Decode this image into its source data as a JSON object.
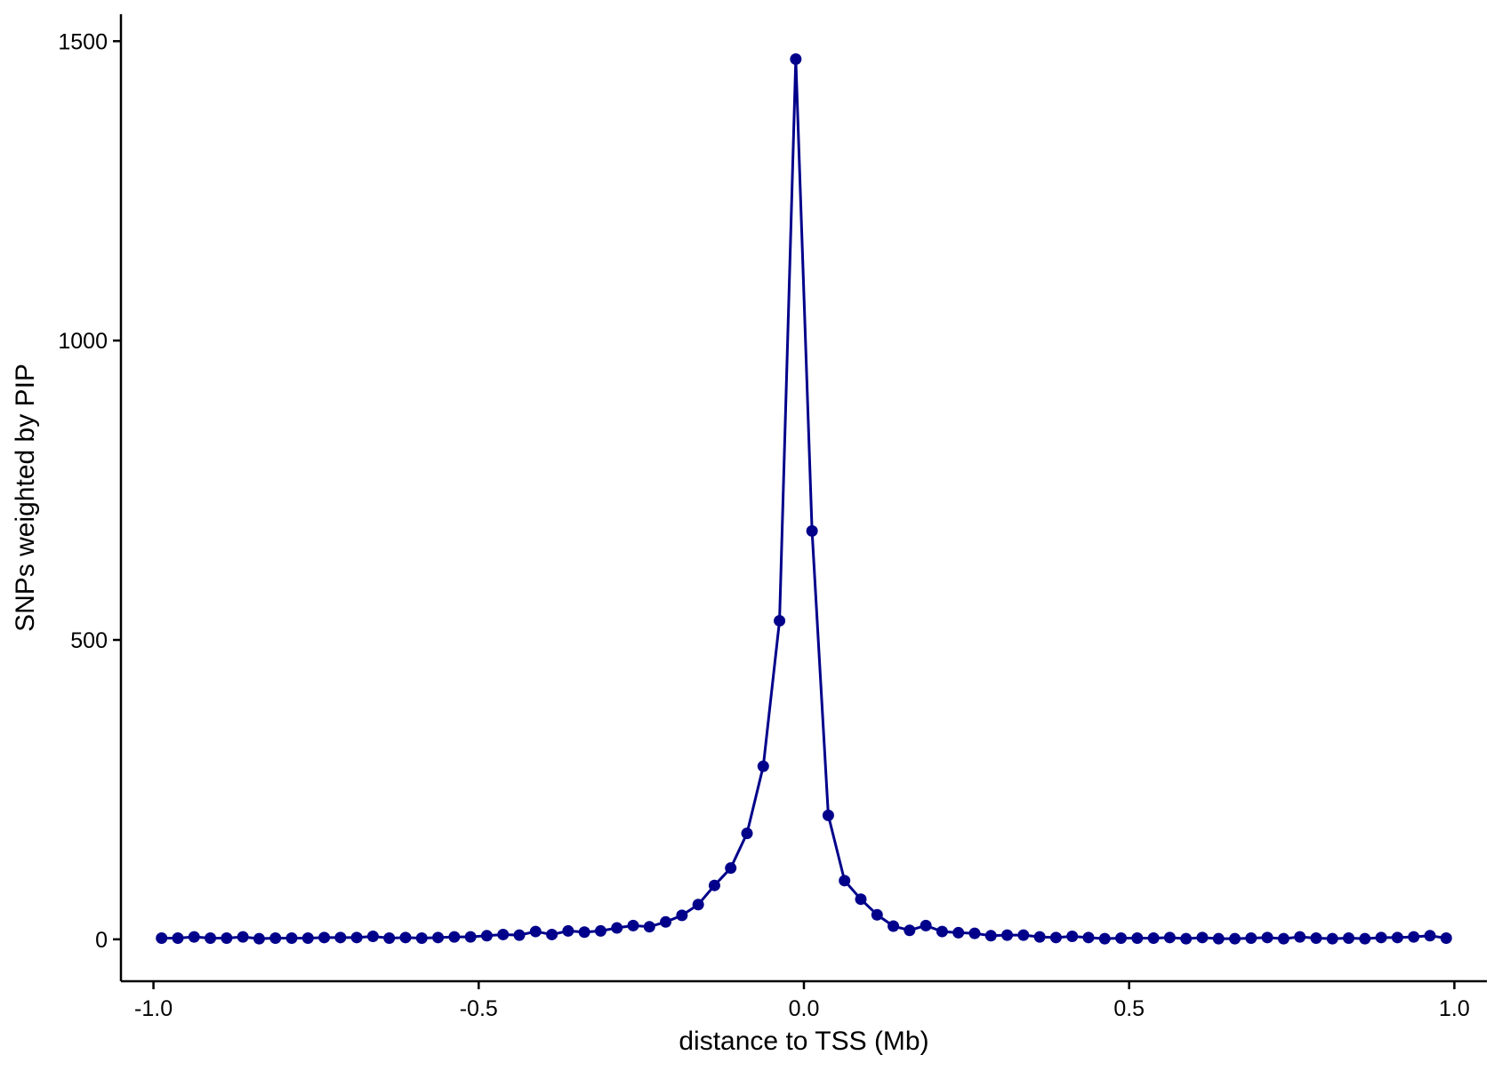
{
  "chart_data": {
    "type": "line",
    "title": "",
    "xlabel": "distance to TSS (Mb)",
    "ylabel": "SNPs weighted by PIP",
    "xlim": [
      -1.05,
      1.05
    ],
    "ylim": [
      -70,
      1545
    ],
    "x_ticks": [
      -1.0,
      -0.5,
      0.0,
      0.5,
      1.0
    ],
    "x_tick_labels": [
      "-1.0",
      "-0.5",
      "0.0",
      "0.5",
      "1.0"
    ],
    "y_ticks": [
      0,
      500,
      1000,
      1500
    ],
    "y_tick_labels": [
      "0",
      "500",
      "1000",
      "1500"
    ],
    "grid": false,
    "legend": "none",
    "markers": true,
    "color": "#00008B",
    "series": [
      {
        "x": [
          -0.9875,
          -0.9625,
          -0.9375,
          -0.9125,
          -0.8875,
          -0.8625,
          -0.8375,
          -0.8125,
          -0.7875,
          -0.7625,
          -0.7375,
          -0.7125,
          -0.6875,
          -0.6625,
          -0.6375,
          -0.6125,
          -0.5875,
          -0.5625,
          -0.5375,
          -0.5125,
          -0.4875,
          -0.4625,
          -0.4375,
          -0.4125,
          -0.3875,
          -0.3625,
          -0.3375,
          -0.3125,
          -0.2875,
          -0.2625,
          -0.2375,
          -0.2125,
          -0.1875,
          -0.1625,
          -0.1375,
          -0.1125,
          -0.0875,
          -0.0625,
          -0.0375,
          -0.0125,
          0.0125,
          0.0375,
          0.0625,
          0.0875,
          0.1125,
          0.1375,
          0.1625,
          0.1875,
          0.2125,
          0.2375,
          0.2625,
          0.2875,
          0.3125,
          0.3375,
          0.3625,
          0.3875,
          0.4125,
          0.4375,
          0.4625,
          0.4875,
          0.5125,
          0.5375,
          0.5625,
          0.5875,
          0.6125,
          0.6375,
          0.6625,
          0.6875,
          0.7125,
          0.7375,
          0.7625,
          0.7875,
          0.8125,
          0.8375,
          0.8625,
          0.8875,
          0.9125,
          0.9375,
          0.9625,
          0.9875
        ],
        "values": [
          2,
          2,
          4,
          2,
          2,
          4,
          1,
          2,
          2,
          2,
          3,
          3,
          3,
          5,
          2,
          3,
          2,
          3,
          4,
          4,
          6,
          8,
          7,
          13,
          8,
          14,
          12,
          14,
          19,
          23,
          21,
          29,
          40,
          58,
          90,
          119,
          177,
          289,
          532,
          1470,
          682,
          207,
          98,
          67,
          41,
          22,
          15,
          23,
          13,
          11,
          10,
          6,
          7,
          7,
          4,
          3,
          5,
          3,
          1,
          2,
          2,
          2,
          3,
          1,
          3,
          1,
          1,
          2,
          3,
          1,
          4,
          2,
          1,
          2,
          1,
          3,
          3,
          4,
          6,
          2
        ]
      }
    ]
  }
}
